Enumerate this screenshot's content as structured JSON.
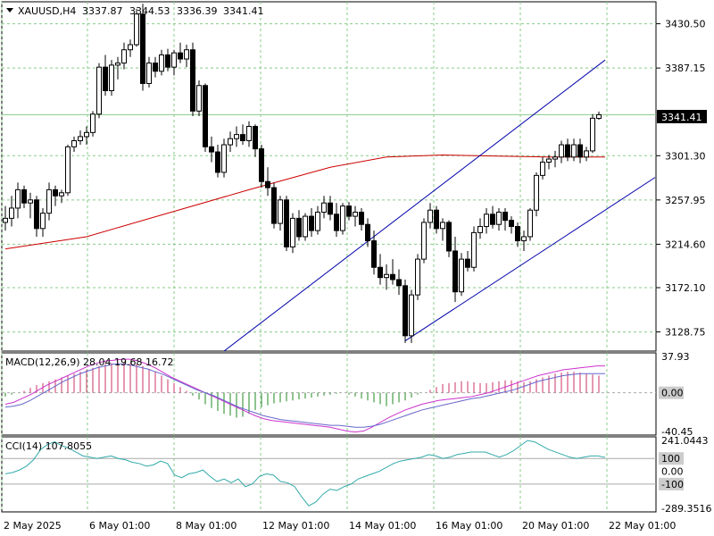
{
  "symbol_info": {
    "symbol": "XAUUSD,H4",
    "open": "3337.87",
    "high": "3344.53",
    "low": "3336.39",
    "close": "3341.41"
  },
  "price_axis": {
    "ticks": [
      "3430.50",
      "3387.15",
      "3301.30",
      "3257.95",
      "3214.60",
      "3172.10",
      "3128.75"
    ],
    "current_price": "3341.41"
  },
  "macd": {
    "label": "MACD(12,26,9) 28.04 19.68 16.72",
    "ticks": [
      "37.93",
      "0.00",
      "-40.45"
    ]
  },
  "cci": {
    "label": "CCI(14) 107.8055",
    "ticks": [
      "241.0443",
      "100",
      "0.00",
      "-100",
      "-289.3516"
    ]
  },
  "time_axis": {
    "labels": [
      "2 May 2025",
      "6 May 01:00",
      "8 May 01:00",
      "12 May 01:00",
      "14 May 01:00",
      "16 May 01:00",
      "20 May 01:00",
      "22 May 01:00"
    ]
  },
  "colors": {
    "bull_fill": "#ffffff",
    "bear_fill": "#000000",
    "ma": "#cc0000",
    "channel": "#0000aa",
    "macd_hist": "#cc3366",
    "macd_hist_neg": "#228822",
    "macd_line": "#cc33cc",
    "signal_line": "#6666cc",
    "cci_line": "#33aaaa",
    "grid": "#88cc88",
    "level": "#aaaaaa"
  },
  "chart_data": {
    "type": "candlestick",
    "title": "XAUUSD,H4",
    "price_range": [
      3110,
      3452
    ],
    "candles": [
      [
        3236,
        3252,
        3228,
        3240
      ],
      [
        3240,
        3262,
        3232,
        3250
      ],
      [
        3250,
        3275,
        3240,
        3268
      ],
      [
        3268,
        3272,
        3250,
        3255
      ],
      [
        3255,
        3265,
        3240,
        3258
      ],
      [
        3258,
        3262,
        3222,
        3230
      ],
      [
        3230,
        3250,
        3222,
        3245
      ],
      [
        3245,
        3275,
        3238,
        3268
      ],
      [
        3268,
        3272,
        3252,
        3262
      ],
      [
        3262,
        3268,
        3255,
        3265
      ],
      [
        3265,
        3312,
        3262,
        3310
      ],
      [
        3310,
        3320,
        3305,
        3316
      ],
      [
        3316,
        3326,
        3312,
        3320
      ],
      [
        3320,
        3330,
        3312,
        3324
      ],
      [
        3324,
        3345,
        3320,
        3342
      ],
      [
        3342,
        3392,
        3338,
        3388
      ],
      [
        3388,
        3400,
        3360,
        3365
      ],
      [
        3365,
        3395,
        3360,
        3390
      ],
      [
        3390,
        3398,
        3376,
        3392
      ],
      [
        3392,
        3412,
        3386,
        3405
      ],
      [
        3405,
        3415,
        3398,
        3410
      ],
      [
        3410,
        3445,
        3408,
        3440
      ],
      [
        3440,
        3450,
        3365,
        3372
      ],
      [
        3372,
        3398,
        3368,
        3392
      ],
      [
        3392,
        3398,
        3378,
        3384
      ],
      [
        3384,
        3405,
        3380,
        3400
      ],
      [
        3400,
        3406,
        3384,
        3388
      ],
      [
        3388,
        3405,
        3380,
        3402
      ],
      [
        3402,
        3412,
        3392,
        3396
      ],
      [
        3396,
        3410,
        3388,
        3405
      ],
      [
        3405,
        3412,
        3340,
        3345
      ],
      [
        3345,
        3375,
        3340,
        3370
      ],
      [
        3370,
        3372,
        3305,
        3310
      ],
      [
        3310,
        3320,
        3295,
        3305
      ],
      [
        3305,
        3312,
        3280,
        3285
      ],
      [
        3285,
        3318,
        3280,
        3312
      ],
      [
        3312,
        3325,
        3305,
        3318
      ],
      [
        3318,
        3330,
        3310,
        3322
      ],
      [
        3322,
        3332,
        3312,
        3316
      ],
      [
        3316,
        3335,
        3310,
        3330
      ],
      [
        3330,
        3332,
        3300,
        3308
      ],
      [
        3308,
        3312,
        3270,
        3276
      ],
      [
        3276,
        3290,
        3262,
        3270
      ],
      [
        3270,
        3275,
        3230,
        3235
      ],
      [
        3235,
        3262,
        3228,
        3258
      ],
      [
        3258,
        3262,
        3208,
        3212
      ],
      [
        3212,
        3245,
        3206,
        3240
      ],
      [
        3240,
        3248,
        3218,
        3222
      ],
      [
        3222,
        3245,
        3218,
        3242
      ],
      [
        3242,
        3250,
        3222,
        3228
      ],
      [
        3228,
        3252,
        3224,
        3246
      ],
      [
        3246,
        3262,
        3240,
        3255
      ],
      [
        3255,
        3262,
        3238,
        3244
      ],
      [
        3244,
        3255,
        3222,
        3228
      ],
      [
        3228,
        3255,
        3224,
        3252
      ],
      [
        3252,
        3256,
        3238,
        3242
      ],
      [
        3242,
        3252,
        3232,
        3246
      ],
      [
        3246,
        3250,
        3228,
        3234
      ],
      [
        3234,
        3240,
        3212,
        3218
      ],
      [
        3218,
        3228,
        3185,
        3192
      ],
      [
        3192,
        3205,
        3175,
        3182
      ],
      [
        3182,
        3195,
        3170,
        3185
      ],
      [
        3185,
        3200,
        3175,
        3180
      ],
      [
        3180,
        3190,
        3165,
        3174
      ],
      [
        3174,
        3180,
        3118,
        3125
      ],
      [
        3125,
        3170,
        3118,
        3165
      ],
      [
        3165,
        3205,
        3160,
        3200
      ],
      [
        3200,
        3240,
        3196,
        3236
      ],
      [
        3236,
        3255,
        3230,
        3248
      ],
      [
        3248,
        3252,
        3225,
        3230
      ],
      [
        3230,
        3240,
        3218,
        3236
      ],
      [
        3236,
        3238,
        3202,
        3208
      ],
      [
        3208,
        3222,
        3158,
        3168
      ],
      [
        3168,
        3206,
        3164,
        3200
      ],
      [
        3200,
        3208,
        3188,
        3192
      ],
      [
        3192,
        3232,
        3188,
        3226
      ],
      [
        3226,
        3240,
        3220,
        3232
      ],
      [
        3232,
        3250,
        3225,
        3244
      ],
      [
        3244,
        3252,
        3230,
        3234
      ],
      [
        3234,
        3250,
        3228,
        3246
      ],
      [
        3246,
        3250,
        3228,
        3238
      ],
      [
        3238,
        3242,
        3225,
        3232
      ],
      [
        3232,
        3236,
        3212,
        3218
      ],
      [
        3218,
        3228,
        3208,
        3222
      ],
      [
        3222,
        3250,
        3218,
        3248
      ],
      [
        3248,
        3285,
        3242,
        3282
      ],
      [
        3282,
        3300,
        3278,
        3295
      ],
      [
        3295,
        3302,
        3288,
        3298
      ],
      [
        3298,
        3306,
        3290,
        3300
      ],
      [
        3300,
        3316,
        3294,
        3312
      ],
      [
        3312,
        3318,
        3296,
        3300
      ],
      [
        3300,
        3318,
        3296,
        3312
      ],
      [
        3312,
        3318,
        3294,
        3300
      ],
      [
        3300,
        3310,
        3296,
        3306
      ],
      [
        3306,
        3342,
        3304,
        3338
      ],
      [
        3337.87,
        3344.53,
        3336.39,
        3341.41
      ]
    ],
    "moving_average": [
      [
        0,
        3210
      ],
      [
        13,
        3222
      ],
      [
        26,
        3245
      ],
      [
        39,
        3268
      ],
      [
        52,
        3290
      ],
      [
        61,
        3300
      ],
      [
        70,
        3302
      ],
      [
        78,
        3301
      ],
      [
        87,
        3300
      ],
      [
        96,
        3300
      ]
    ],
    "channel_upper": [
      [
        35,
        3110
      ],
      [
        96,
        3395
      ]
    ],
    "channel_lower": [
      [
        64,
        3120
      ],
      [
        104,
        3280
      ]
    ],
    "macd_hist": [
      -4,
      -2,
      0,
      2,
      5,
      8,
      10,
      12,
      14,
      16,
      18,
      20,
      22,
      24,
      26,
      28,
      30,
      31,
      32,
      32,
      31,
      30,
      28,
      25,
      22,
      18,
      14,
      10,
      6,
      2,
      -3,
      -7,
      -12,
      -16,
      -19,
      -22,
      -24,
      -26,
      -25,
      -22,
      -18,
      -15,
      -13,
      -11,
      -10,
      -9,
      -8,
      -7,
      -6,
      -5,
      -4,
      -3,
      -2,
      -1,
      0,
      -2,
      -4,
      -6,
      -8,
      -10,
      -12,
      -14,
      -12,
      -10,
      -8,
      -5,
      -2,
      0,
      3,
      6,
      9,
      10,
      11,
      12,
      12,
      11,
      10,
      10,
      11,
      12,
      13,
      13,
      12,
      11,
      12,
      14,
      16,
      18,
      20,
      21,
      22,
      22,
      21,
      20,
      19,
      18
    ],
    "macd_line": [
      -12,
      -10,
      -6,
      -2,
      3,
      8,
      12,
      16,
      20,
      24,
      28,
      31,
      33,
      34,
      35,
      35,
      33,
      30,
      26,
      21,
      16,
      12,
      8,
      4,
      0,
      -4,
      -8,
      -12,
      -16,
      -20,
      -24,
      -27,
      -29,
      -30,
      -31,
      -32,
      -33,
      -34,
      -35,
      -36,
      -38,
      -40,
      -41,
      -40,
      -36,
      -31,
      -26,
      -22,
      -18,
      -15,
      -12,
      -10,
      -8,
      -7,
      -6,
      -5,
      -4,
      -2,
      0,
      3,
      6,
      9,
      12,
      15,
      18,
      20,
      22,
      24,
      25,
      26,
      27,
      28,
      28
    ],
    "signal_line": [
      -15,
      -14,
      -12,
      -8,
      -3,
      2,
      7,
      12,
      16,
      20,
      23,
      26,
      28,
      30,
      30,
      29,
      27,
      25,
      22,
      19,
      15,
      11,
      7,
      3,
      0,
      -3,
      -7,
      -11,
      -15,
      -18,
      -21,
      -24,
      -26,
      -28,
      -29,
      -30,
      -31,
      -32,
      -33,
      -34,
      -34,
      -35,
      -36,
      -36,
      -35,
      -33,
      -30,
      -27,
      -24,
      -21,
      -18,
      -16,
      -14,
      -12,
      -10,
      -8,
      -6,
      -5,
      -3,
      -1,
      1,
      3,
      6,
      9,
      12,
      14,
      16,
      18,
      19,
      20,
      20,
      20,
      20
    ],
    "cci": [
      -20,
      -10,
      10,
      40,
      90,
      170,
      210,
      230,
      200,
      180,
      150,
      120,
      110,
      100,
      110,
      120,
      100,
      90,
      70,
      60,
      40,
      50,
      80,
      60,
      -30,
      -50,
      -20,
      -10,
      10,
      -40,
      -80,
      -60,
      -90,
      -60,
      -120,
      -100,
      -40,
      -20,
      -30,
      -80,
      -90,
      -120,
      -200,
      -270,
      -240,
      -180,
      -140,
      -150,
      -120,
      -100,
      -60,
      -40,
      -20,
      0,
      30,
      60,
      80,
      90,
      100,
      110,
      130,
      120,
      100,
      110,
      130,
      140,
      150,
      150,
      150,
      130,
      110,
      130,
      160,
      200,
      240,
      230,
      200,
      170,
      150,
      130,
      110,
      100,
      110,
      120,
      120,
      108
    ]
  }
}
